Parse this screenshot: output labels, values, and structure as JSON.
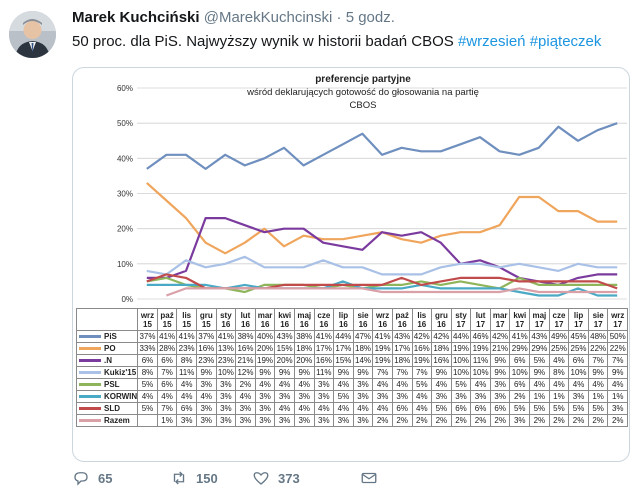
{
  "tweet": {
    "author_name": "Marek Kuchciński",
    "author_handle": "@MarekKuchcinski",
    "separator": "·",
    "time": "5 godz.",
    "text_plain": "50 proc. dla PiS. Najwyższy wynik w historii badań CBOS ",
    "hashtag1": "#wrzesień",
    "hashtag2": "#piąteczek",
    "actions": {
      "reply_count": "65",
      "retweet_count": "150",
      "like_count": "373"
    }
  },
  "chart_data": {
    "type": "line",
    "title": "preferencje partyjne",
    "subtitle": "wśród deklarujących gotowość do głosowania na partię",
    "source": "CBOS",
    "ylim": [
      0,
      60
    ],
    "yticks": [
      "0%",
      "10%",
      "20%",
      "30%",
      "40%",
      "50%",
      "60%"
    ],
    "grid": true,
    "legend": "table-below",
    "x_top": [
      "wrz",
      "paź",
      "lis",
      "gru",
      "sty",
      "lut",
      "mar",
      "kwi",
      "maj",
      "cze",
      "lip",
      "sie",
      "wrz",
      "paź",
      "lis",
      "gru",
      "sty",
      "lut",
      "mar",
      "kwi",
      "maj",
      "cze",
      "lip",
      "sie",
      "wrz"
    ],
    "x_bottom": [
      "15",
      "15",
      "15",
      "15",
      "16",
      "16",
      "16",
      "16",
      "16",
      "16",
      "16",
      "16",
      "16",
      "16",
      "16",
      "16",
      "17",
      "17",
      "17",
      "17",
      "17",
      "17",
      "17",
      "17",
      "17"
    ],
    "series": [
      {
        "name": "PiS",
        "color": "#6f8fbf",
        "values": [
          37,
          41,
          41,
          37,
          41,
          38,
          40,
          43,
          38,
          41,
          44,
          47,
          41,
          43,
          42,
          42,
          44,
          46,
          42,
          41,
          43,
          49,
          45,
          48,
          50
        ]
      },
      {
        "name": "PO",
        "color": "#f0a55c",
        "values": [
          33,
          28,
          23,
          16,
          13,
          16,
          20,
          15,
          18,
          17,
          17,
          18,
          19,
          17,
          16,
          18,
          19,
          19,
          21,
          29,
          29,
          25,
          25,
          22,
          22
        ]
      },
      {
        "name": ".N",
        "color": "#7b3b9e",
        "values": [
          6,
          6,
          8,
          23,
          23,
          21,
          19,
          20,
          20,
          16,
          15,
          14,
          19,
          18,
          19,
          16,
          10,
          11,
          9,
          6,
          5,
          4,
          6,
          7,
          7
        ]
      },
      {
        "name": "Kukiz'15",
        "color": "#a9c1e6",
        "values": [
          8,
          7,
          11,
          9,
          10,
          12,
          9,
          9,
          9,
          11,
          9,
          9,
          7,
          7,
          7,
          9,
          10,
          10,
          9,
          10,
          9,
          8,
          10,
          9,
          9
        ]
      },
      {
        "name": "PSL",
        "color": "#8eb55a",
        "values": [
          5,
          6,
          4,
          3,
          3,
          2,
          4,
          4,
          4,
          3,
          4,
          3,
          4,
          4,
          5,
          4,
          5,
          4,
          3,
          6,
          4,
          4,
          4,
          4,
          4
        ]
      },
      {
        "name": "KORWIN",
        "color": "#4aa9c4",
        "values": [
          4,
          4,
          4,
          4,
          3,
          4,
          3,
          3,
          3,
          3,
          5,
          3,
          3,
          3,
          4,
          3,
          3,
          3,
          3,
          2,
          1,
          1,
          3,
          1,
          1
        ]
      },
      {
        "name": "SLD",
        "color": "#c14b4b",
        "values": [
          5,
          7,
          6,
          3,
          3,
          3,
          3,
          4,
          4,
          4,
          4,
          4,
          4,
          6,
          4,
          5,
          6,
          6,
          6,
          5,
          5,
          5,
          5,
          5,
          3
        ]
      },
      {
        "name": "Razem",
        "color": "#d9a0a8",
        "values": [
          null,
          1,
          3,
          3,
          3,
          3,
          3,
          3,
          3,
          3,
          3,
          3,
          2,
          2,
          2,
          2,
          2,
          2,
          2,
          3,
          2,
          2,
          2,
          2,
          2
        ]
      }
    ]
  }
}
